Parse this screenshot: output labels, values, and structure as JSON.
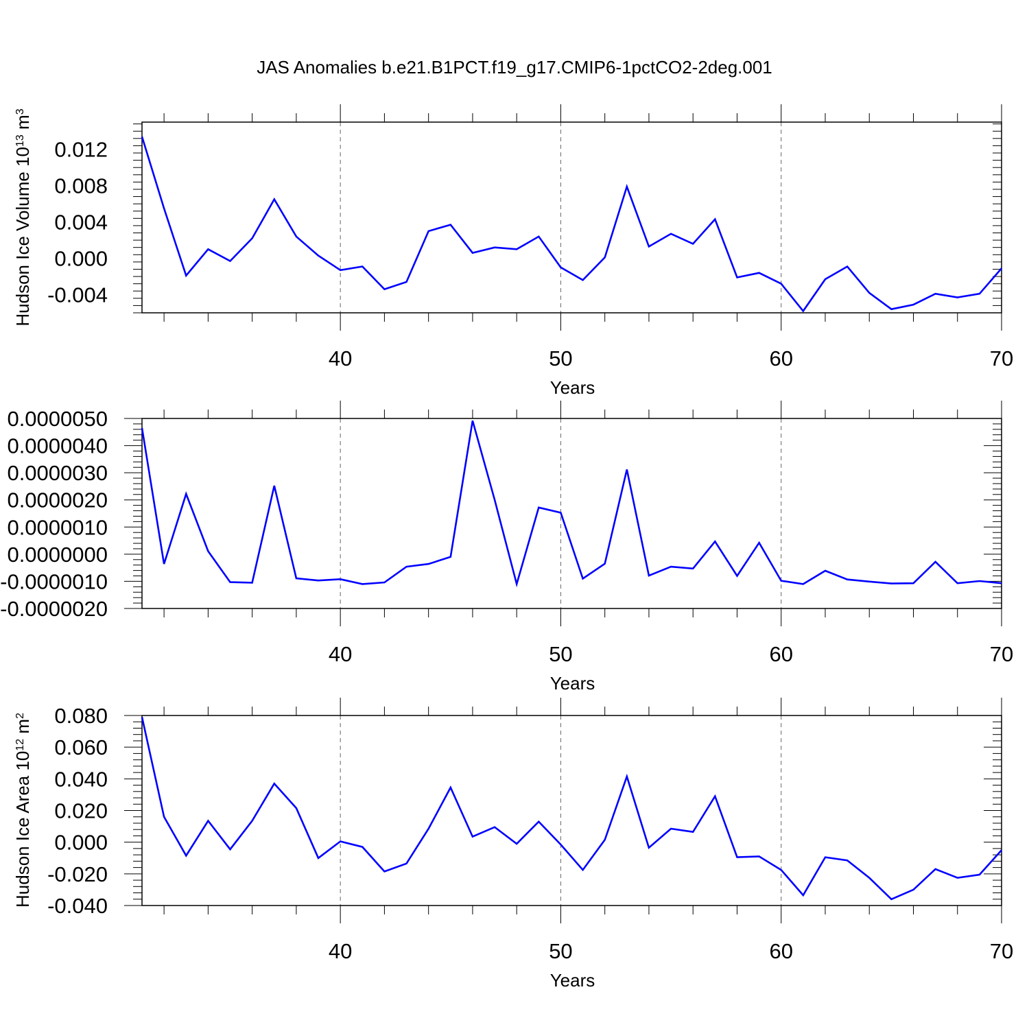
{
  "title": "JAS Anomalies b.e21.B1PCT.f19_g17.CMIP6-1pctCO2-2deg.001",
  "line_color": "#0000ff",
  "chart_data": [
    {
      "type": "line",
      "ylabel": "Hudson Ice Volume 10",
      "ylabel_sup": "13",
      "ylabel_unit": " m",
      "ylabel_unit_sup": "3",
      "xlabel": "Years",
      "xlim": [
        31,
        70
      ],
      "ylim": [
        -0.006,
        0.015
      ],
      "xticks": [
        40,
        50,
        60,
        70
      ],
      "xtick_labels": [
        "40",
        "50",
        "60",
        "70"
      ],
      "yticks": [
        0.012,
        0.008,
        0.004,
        0.0,
        -0.004
      ],
      "ytick_labels": [
        "0.012",
        "0.008",
        "0.004",
        "0.000",
        "-0.004"
      ],
      "grid": "x-dashed",
      "x": [
        31,
        32,
        33,
        34,
        35,
        36,
        37,
        38,
        39,
        40,
        41,
        42,
        43,
        44,
        45,
        46,
        47,
        48,
        49,
        50,
        51,
        52,
        53,
        54,
        55,
        56,
        57,
        58,
        59,
        60,
        61,
        62,
        63,
        64,
        65,
        66,
        67,
        68,
        69,
        70
      ],
      "values": [
        0.0134,
        0.0055,
        -0.0019,
        0.001,
        -0.0003,
        0.0022,
        0.0065,
        0.0024,
        0.0003,
        -0.0013,
        -0.0009,
        -0.0034,
        -0.0026,
        0.003,
        0.0037,
        0.0006,
        0.0012,
        0.001,
        0.0024,
        -0.001,
        -0.0024,
        0.0001,
        0.0079,
        0.0013,
        0.0027,
        0.0016,
        0.0043,
        -0.0021,
        -0.0016,
        -0.0028,
        -0.0058,
        -0.0023,
        -0.0009,
        -0.0038,
        -0.0056,
        -0.0051,
        -0.0039,
        -0.0043,
        -0.0039,
        -0.0011
      ]
    },
    {
      "type": "line",
      "ylabel": "",
      "xlabel": "Years",
      "xlim": [
        31,
        70
      ],
      "ylim": [
        -2e-06,
        5e-06
      ],
      "xticks": [
        40,
        50,
        60,
        70
      ],
      "xtick_labels": [
        "40",
        "50",
        "60",
        "70"
      ],
      "yticks": [
        5e-06,
        4e-06,
        3e-06,
        2e-06,
        1e-06,
        0.0,
        -1e-06,
        -2e-06
      ],
      "ytick_labels": [
        "0.0000050",
        "0.0000040",
        "0.0000030",
        "0.0000020",
        "0.0000010",
        "0.0000000",
        "-0.0000010",
        "-0.0000020"
      ],
      "grid": "x-dashed",
      "x": [
        31,
        32,
        33,
        34,
        35,
        36,
        37,
        38,
        39,
        40,
        41,
        42,
        43,
        44,
        45,
        46,
        47,
        48,
        49,
        50,
        51,
        52,
        53,
        54,
        55,
        56,
        57,
        58,
        59,
        60,
        61,
        62,
        63,
        64,
        65,
        66,
        67,
        68,
        69,
        70
      ],
      "values": [
        4.65e-06,
        -3.6e-07,
        2.22e-06,
        1.1e-07,
        -1.03e-06,
        -1.05e-06,
        2.52e-06,
        -8.9e-07,
        -9.7e-07,
        -9.2e-07,
        -1.1e-06,
        -1.04e-06,
        -4.6e-07,
        -3.6e-07,
        -1e-07,
        4.92e-06,
        2e-06,
        -1.1e-06,
        1.72e-06,
        1.53e-06,
        -9e-07,
        -3.5e-07,
        3.12e-06,
        -7.9e-07,
        -4.6e-07,
        -5.3e-07,
        4.7e-07,
        -8e-07,
        4.2e-07,
        -9.8e-07,
        -1.1e-06,
        -6.1e-07,
        -9.3e-07,
        -1.01e-06,
        -1.08e-06,
        -1.07e-06,
        -2.8e-07,
        -1.07e-06,
        -9.9e-07,
        -1.07e-06
      ]
    },
    {
      "type": "line",
      "ylabel": "Hudson Ice Area 10",
      "ylabel_sup": "12",
      "ylabel_unit": " m",
      "ylabel_unit_sup": "2",
      "xlabel": "Years",
      "xlim": [
        31,
        70
      ],
      "ylim": [
        -0.04,
        0.08
      ],
      "xticks": [
        40,
        50,
        60,
        70
      ],
      "xtick_labels": [
        "40",
        "50",
        "60",
        "70"
      ],
      "yticks": [
        0.08,
        0.06,
        0.04,
        0.02,
        0.0,
        -0.02,
        -0.04
      ],
      "ytick_labels": [
        "0.080",
        "0.060",
        "0.040",
        "0.020",
        "0.000",
        "-0.020",
        "-0.040"
      ],
      "grid": "x-dashed",
      "x": [
        31,
        32,
        33,
        34,
        35,
        36,
        37,
        38,
        39,
        40,
        41,
        42,
        43,
        44,
        45,
        46,
        47,
        48,
        49,
        50,
        51,
        52,
        53,
        54,
        55,
        56,
        57,
        58,
        59,
        60,
        61,
        62,
        63,
        64,
        65,
        66,
        67,
        68,
        69,
        70
      ],
      "values": [
        0.079,
        0.016,
        -0.0085,
        0.0135,
        -0.0045,
        0.0135,
        0.037,
        0.0215,
        -0.01,
        0.0005,
        -0.003,
        -0.0185,
        -0.0135,
        0.0085,
        0.0345,
        0.0035,
        0.0095,
        -0.001,
        0.013,
        -0.0015,
        -0.0175,
        0.0015,
        0.0415,
        -0.0035,
        0.0085,
        0.0065,
        0.029,
        -0.0095,
        -0.009,
        -0.0175,
        -0.0335,
        -0.0095,
        -0.0115,
        -0.0225,
        -0.036,
        -0.03,
        -0.017,
        -0.0225,
        -0.0205,
        -0.005
      ]
    }
  ]
}
